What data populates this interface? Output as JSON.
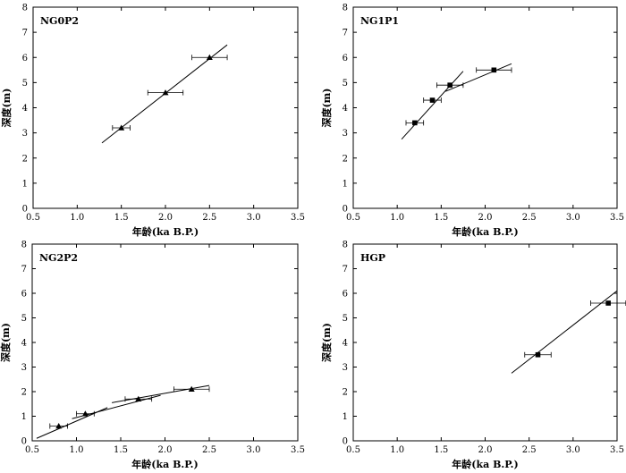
{
  "chart_data": [
    {
      "type": "scatter",
      "title": "NG0P2",
      "xlabel": "年龄(ka B.P.)",
      "ylabel": "深度(m)",
      "xlim": [
        0.5,
        3.5
      ],
      "ylim": [
        0,
        8
      ],
      "xticks": [
        "0.5",
        "1.0",
        "1.5",
        "2.0",
        "2.5",
        "3.0",
        "3.5"
      ],
      "yticks": [
        "0",
        "1",
        "2",
        "3",
        "4",
        "5",
        "6",
        "7",
        "8"
      ],
      "marker": "triangle",
      "points": [
        {
          "x": 1.5,
          "y": 3.2,
          "xerr": 0.1
        },
        {
          "x": 2.0,
          "y": 4.6,
          "xerr": 0.2
        },
        {
          "x": 2.5,
          "y": 6.0,
          "xerr": 0.2
        }
      ],
      "fit_segments": [
        [
          [
            1.28,
            2.6
          ],
          [
            2.7,
            6.5
          ]
        ]
      ]
    },
    {
      "type": "scatter",
      "title": "NG1P1",
      "xlabel": "年龄(ka B.P.)",
      "ylabel": "深度(m)",
      "xlim": [
        0.5,
        3.5
      ],
      "ylim": [
        0,
        8
      ],
      "xticks": [
        "0.5",
        "1.0",
        "1.5",
        "2.0",
        "2.5",
        "3.0",
        "3.5"
      ],
      "yticks": [
        "0",
        "1",
        "2",
        "3",
        "4",
        "5",
        "6",
        "7",
        "8"
      ],
      "marker": "square",
      "points": [
        {
          "x": 1.2,
          "y": 3.4,
          "xerr": 0.1
        },
        {
          "x": 1.4,
          "y": 4.3,
          "xerr": 0.1
        },
        {
          "x": 1.6,
          "y": 4.9,
          "xerr": 0.15
        },
        {
          "x": 2.1,
          "y": 5.5,
          "xerr": 0.2
        }
      ],
      "fit_segments": [
        [
          [
            1.05,
            2.75
          ],
          [
            1.75,
            5.45
          ]
        ],
        [
          [
            1.55,
            4.65
          ],
          [
            2.3,
            5.75
          ]
        ]
      ]
    },
    {
      "type": "scatter",
      "title": "NG2P2",
      "xlabel": "年龄(ka B.P.)",
      "ylabel": "深度(m)",
      "xlim": [
        0.5,
        3.5
      ],
      "ylim": [
        0,
        8
      ],
      "xticks": [
        "0.5",
        "1.0",
        "1.5",
        "2.0",
        "2.5",
        "3.0",
        "3.5"
      ],
      "yticks": [
        "0",
        "1",
        "2",
        "3",
        "4",
        "5",
        "6",
        "7",
        "8"
      ],
      "marker": "triangle",
      "points": [
        {
          "x": 0.8,
          "y": 0.6,
          "xerr": 0.1
        },
        {
          "x": 1.1,
          "y": 1.1,
          "xerr": 0.1
        },
        {
          "x": 1.7,
          "y": 1.7,
          "xerr": 0.15
        },
        {
          "x": 2.3,
          "y": 2.1,
          "xerr": 0.2
        }
      ],
      "fit_segments": [
        [
          [
            0.55,
            0.1
          ],
          [
            1.35,
            1.35
          ]
        ],
        [
          [
            0.95,
            0.9
          ],
          [
            1.95,
            1.85
          ]
        ],
        [
          [
            1.4,
            1.55
          ],
          [
            2.5,
            2.25
          ]
        ]
      ]
    },
    {
      "type": "scatter",
      "title": "HGP",
      "xlabel": "年龄(ka B.P.)",
      "ylabel": "深度(m)",
      "xlim": [
        0.5,
        3.5
      ],
      "ylim": [
        0,
        8
      ],
      "xticks": [
        "0.5",
        "1.0",
        "1.5",
        "2.0",
        "2.5",
        "3.0",
        "3.5"
      ],
      "yticks": [
        "0",
        "1",
        "2",
        "3",
        "4",
        "5",
        "6",
        "7",
        "8"
      ],
      "marker": "square",
      "points": [
        {
          "x": 2.6,
          "y": 3.5,
          "xerr": 0.15
        },
        {
          "x": 3.4,
          "y": 5.6,
          "xerr": 0.2
        }
      ],
      "fit_segments": [
        [
          [
            2.3,
            2.75
          ],
          [
            3.5,
            6.1
          ]
        ]
      ]
    }
  ]
}
